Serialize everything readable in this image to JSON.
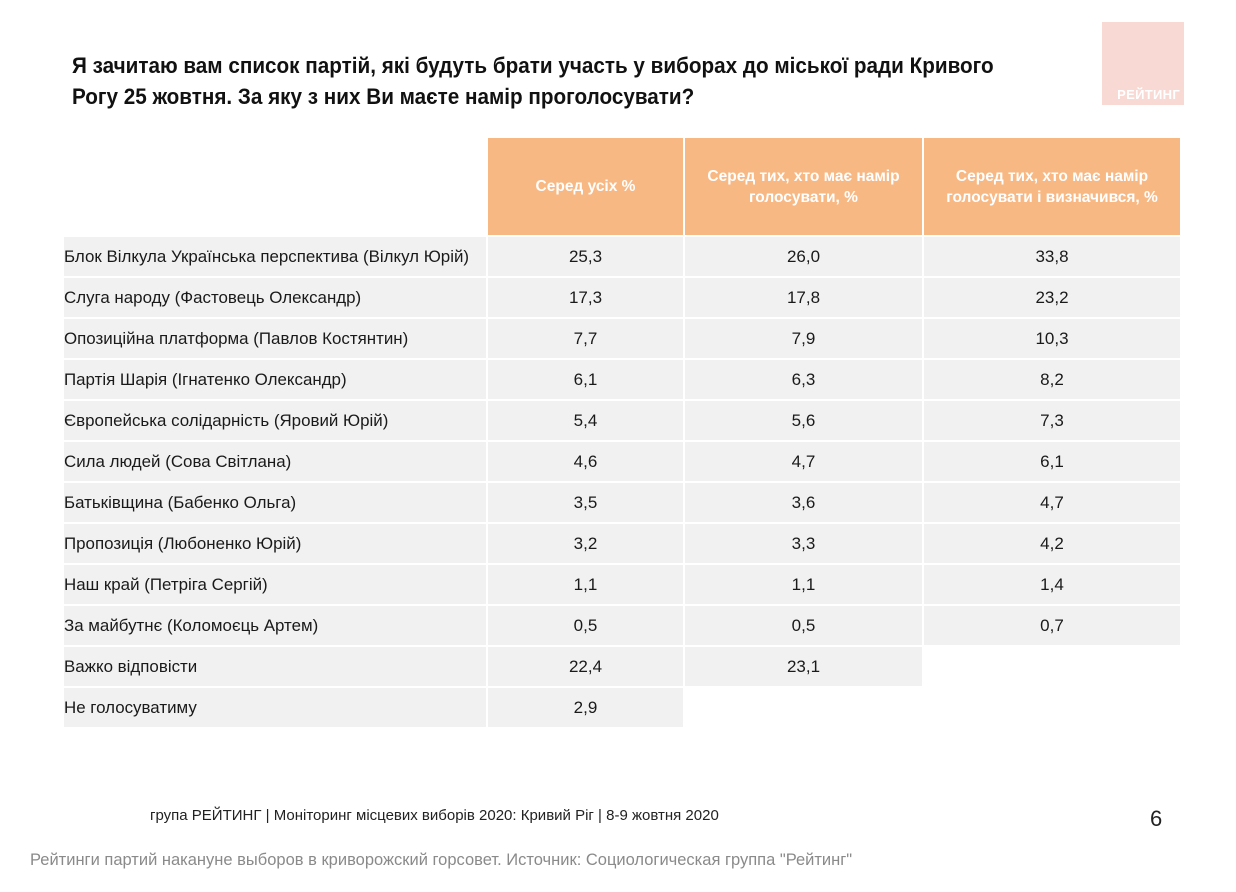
{
  "title": "Я зачитаю вам список партій, які будуть брати участь у виборах до міської ради Кривого Рогу 25 жовтня. За яку з них Ви маєте намір проголосувати?",
  "logo": {
    "text": "РЕЙТИНГ",
    "color": "#f8d9d4"
  },
  "table": {
    "header_color": "#f8b883",
    "columns": [
      "Серед усіх %",
      "Серед тих, хто має намір голосувати, %",
      "Серед тих, хто має намір голосувати і визначився, %"
    ],
    "rows": [
      {
        "name": "Блок Вілкула Українська перспектива (Вілкул Юрій)",
        "v1": "25,3",
        "v2": "26,0",
        "v3": "33,8"
      },
      {
        "name": "Слуга народу (Фастовець Олександр)",
        "v1": "17,3",
        "v2": "17,8",
        "v3": "23,2"
      },
      {
        "name": "Опозиційна платформа (Павлов Костянтин)",
        "v1": "7,7",
        "v2": "7,9",
        "v3": "10,3"
      },
      {
        "name": "Партія Шарія (Ігнатенко Олександр)",
        "v1": "6,1",
        "v2": "6,3",
        "v3": "8,2"
      },
      {
        "name": "Європейська солідарність (Яровий Юрій)",
        "v1": "5,4",
        "v2": "5,6",
        "v3": "7,3"
      },
      {
        "name": "Сила людей (Сова Світлана)",
        "v1": "4,6",
        "v2": "4,7",
        "v3": "6,1"
      },
      {
        "name": "Батьківщина (Бабенко Ольга)",
        "v1": "3,5",
        "v2": "3,6",
        "v3": "4,7"
      },
      {
        "name": "Пропозиція (Любоненко Юрій)",
        "v1": "3,2",
        "v2": "3,3",
        "v3": "4,2"
      },
      {
        "name": "Наш край (Петріга Сергій)",
        "v1": "1,1",
        "v2": "1,1",
        "v3": "1,4"
      },
      {
        "name": "За майбутнє (Коломоєць Артем)",
        "v1": "0,5",
        "v2": "0,5",
        "v3": "0,7"
      },
      {
        "name": "Важко відповісти",
        "v1": "22,4",
        "v2": "23,1",
        "v3": null
      },
      {
        "name": "Не голосуватиму",
        "v1": "2,9",
        "v2": null,
        "v3": null
      }
    ]
  },
  "footer": "група РЕЙТИНГ  | Моніторинг місцевих виборів 2020: Кривий Ріг |  8-9 жовтня 2020",
  "page_number": "6",
  "caption": "Рейтинги партий накануне выборов в криворожский горсовет. Источник: Социологическая группа \"Рейтинг\""
}
